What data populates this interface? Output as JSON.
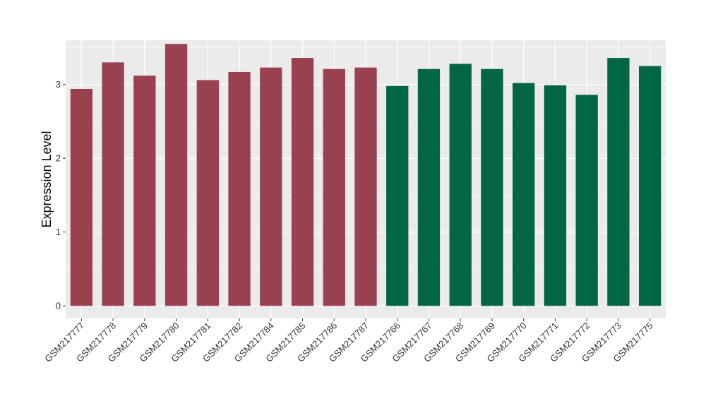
{
  "chart_data": {
    "type": "bar",
    "ylabel": "Expression Level",
    "xlabel": "",
    "ylim": [
      -0.17,
      3.6
    ],
    "yticks": [
      0,
      1,
      2,
      3
    ],
    "grid": true,
    "categories": [
      "GSM217777",
      "GSM217778",
      "GSM217779",
      "GSM217780",
      "GSM217781",
      "GSM217782",
      "GSM217784",
      "GSM217785",
      "GSM217786",
      "GSM217787",
      "GSM217766",
      "GSM217767",
      "GSM217768",
      "GSM217769",
      "GSM217770",
      "GSM217771",
      "GSM217772",
      "GSM217773",
      "GSM217775"
    ],
    "values": [
      2.94,
      3.3,
      3.12,
      3.55,
      3.06,
      3.17,
      3.23,
      3.36,
      3.21,
      3.23,
      2.98,
      3.21,
      3.28,
      3.21,
      3.02,
      2.99,
      2.86,
      3.36,
      3.25
    ],
    "colors": [
      "#9A4150",
      "#9A4150",
      "#9A4150",
      "#9A4150",
      "#9A4150",
      "#9A4150",
      "#9A4150",
      "#9A4150",
      "#9A4150",
      "#9A4150",
      "#006644",
      "#006644",
      "#006644",
      "#006644",
      "#006644",
      "#006644",
      "#006644",
      "#006644",
      "#006644"
    ],
    "panel_background": "#EBEBEB",
    "grid_color": "#FFFFFF"
  }
}
